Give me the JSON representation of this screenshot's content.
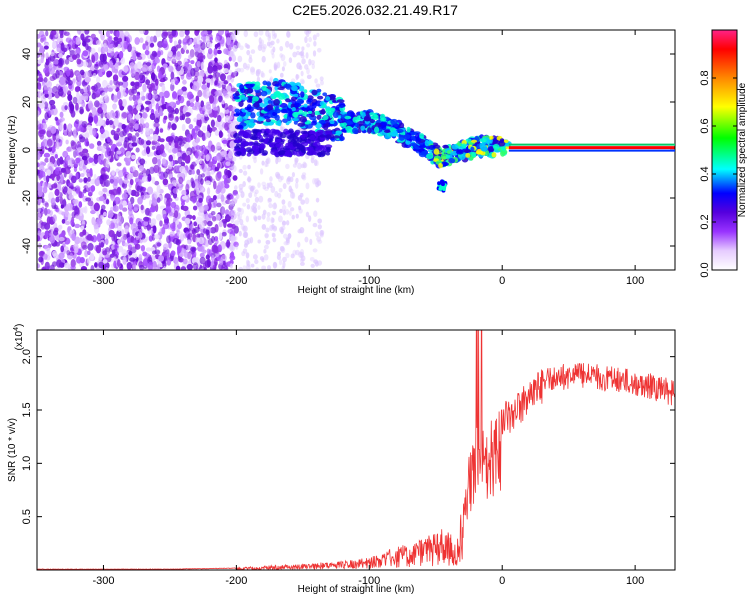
{
  "title": "C2E5.2026.032.21.49.R17",
  "chart_data": [
    {
      "type": "heatmap",
      "xlabel": "Height of straight line (km)",
      "ylabel": "Frequency (Hz)",
      "xlim": [
        -350,
        130
      ],
      "ylim": [
        -50,
        50
      ],
      "x_ticks": [
        -300,
        -200,
        -100,
        0,
        100
      ],
      "y_ticks": [
        -40,
        -20,
        0,
        20,
        40
      ],
      "colorbar": {
        "label": "Normalized spectral amplitude",
        "range": [
          0,
          1
        ],
        "ticks": [
          0.0,
          0.2,
          0.4,
          0.6,
          0.8
        ],
        "tick_labels": [
          "0.0",
          "0.2",
          "0.4",
          "0.6",
          "0.8"
        ],
        "colors": [
          "#ffffff",
          "#e6ccff",
          "#9933ff",
          "#5500dd",
          "#0000ff",
          "#00ffff",
          "#00ff00",
          "#ffff00",
          "#ff8800",
          "#ff0000",
          "#ff2288"
        ]
      },
      "trace": {
        "x": [
          -200,
          -185,
          -170,
          -155,
          -140,
          -130,
          -120,
          -110,
          -100,
          -90,
          -80,
          -70,
          -60,
          -50,
          -45,
          -40,
          -30,
          -20,
          -10,
          0,
          10,
          50,
          100,
          130
        ],
        "y": [
          18,
          19,
          20,
          19,
          17,
          14,
          12,
          11,
          12,
          10,
          8,
          5,
          2,
          -2,
          -3,
          -2,
          0,
          1,
          2,
          1,
          1,
          1,
          1,
          1
        ]
      }
    },
    {
      "type": "line",
      "xlabel": "Height of straight line (km)",
      "ylabel": "SNR (10 * v/v)",
      "y_multiplier": "(x10",
      "y_multiplier_exp": "4",
      "y_multiplier_close": ")",
      "xlim": [
        -350,
        130
      ],
      "ylim": [
        0,
        2.25
      ],
      "x_ticks": [
        -300,
        -200,
        -100,
        0,
        100
      ],
      "y_ticks": [
        0.5,
        1.0,
        1.5,
        2.0
      ],
      "y_tick_labels": [
        "0.5",
        "1.0",
        "1.5",
        "2.0"
      ],
      "series": [
        {
          "color": "#ee3333",
          "x": [
            -350,
            -300,
            -250,
            -200,
            -180,
            -160,
            -140,
            -120,
            -100,
            -90,
            -80,
            -70,
            -60,
            -50,
            -45,
            -40,
            -35,
            -30,
            -25,
            -20,
            -15,
            -10,
            -5,
            0,
            10,
            20,
            30,
            40,
            60,
            80,
            100,
            120,
            130
          ],
          "y": [
            0.01,
            0.01,
            0.01,
            0.02,
            0.04,
            0.05,
            0.07,
            0.08,
            0.12,
            0.17,
            0.22,
            0.25,
            0.3,
            0.35,
            0.4,
            0.35,
            0.3,
            0.6,
            1.1,
            1.4,
            1.3,
            1.45,
            1.5,
            1.6,
            1.65,
            1.8,
            1.9,
            1.93,
            1.95,
            1.92,
            1.88,
            1.82,
            1.78
          ]
        }
      ]
    }
  ]
}
